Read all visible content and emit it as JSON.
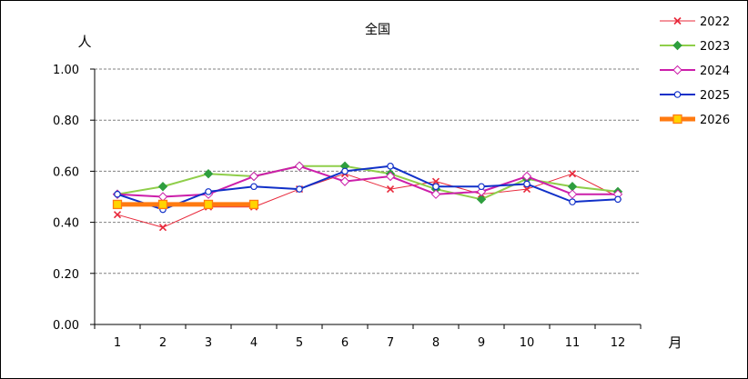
{
  "chart_data": {
    "type": "line",
    "title": "全国",
    "ylabel": "人",
    "xlabel": "月",
    "categories": [
      "1",
      "2",
      "3",
      "4",
      "5",
      "6",
      "7",
      "8",
      "9",
      "10",
      "11",
      "12"
    ],
    "y_ticks": [
      "0.00",
      "0.20",
      "0.40",
      "0.60",
      "0.80",
      "1.00"
    ],
    "ylim": [
      0,
      1.0
    ],
    "grid": "horizontal dashed",
    "legend_position": "right",
    "series": [
      {
        "name": "2022",
        "color": "#e8283a",
        "marker": "x",
        "values": [
          0.43,
          0.38,
          0.46,
          0.46,
          0.53,
          0.59,
          0.53,
          0.56,
          0.51,
          0.53,
          0.59,
          0.5
        ]
      },
      {
        "name": "2023",
        "color": "#8fce4a",
        "marker": "diamond-filled",
        "marker_color": "#2e9e3e",
        "values": [
          0.51,
          0.54,
          0.59,
          0.58,
          0.62,
          0.62,
          0.59,
          0.53,
          0.49,
          0.57,
          0.54,
          0.52
        ]
      },
      {
        "name": "2024",
        "color": "#cc1eaa",
        "marker": "diamond-open",
        "values": [
          0.51,
          0.5,
          0.51,
          0.58,
          0.62,
          0.56,
          0.58,
          0.51,
          0.52,
          0.58,
          0.51,
          0.51
        ]
      },
      {
        "name": "2025",
        "color": "#1030c8",
        "marker": "circle-open",
        "values": [
          0.51,
          0.45,
          0.52,
          0.54,
          0.53,
          0.6,
          0.62,
          0.54,
          0.54,
          0.55,
          0.48,
          0.49
        ]
      },
      {
        "name": "2026",
        "color": "#ff7a10",
        "marker": "square-filled",
        "marker_color": "#ffd400",
        "thick": true,
        "values": [
          0.47,
          0.47,
          0.47,
          0.47,
          null,
          null,
          null,
          null,
          null,
          null,
          null,
          null
        ]
      }
    ]
  }
}
